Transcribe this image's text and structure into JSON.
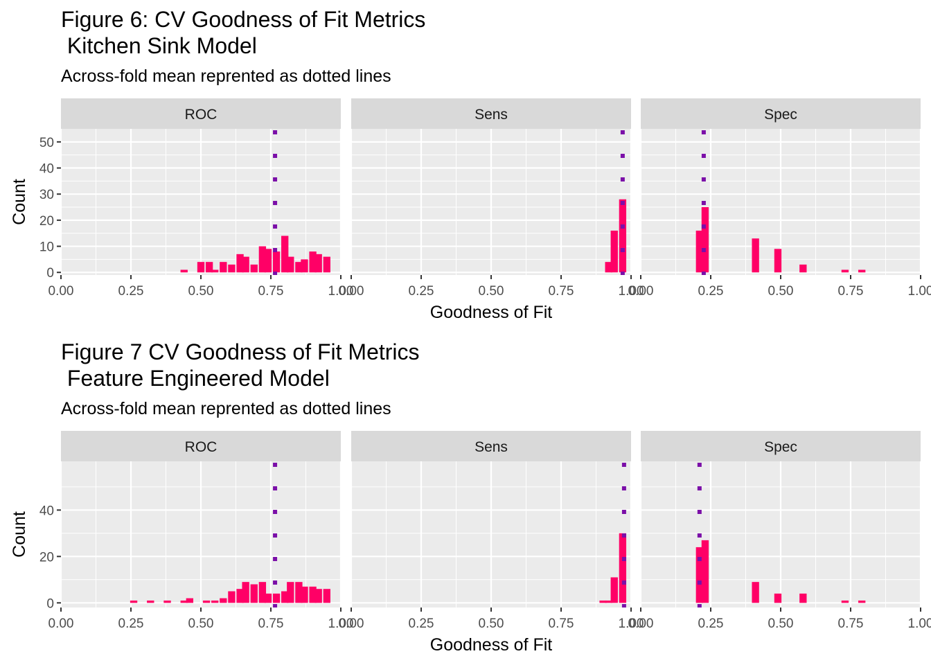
{
  "colors": {
    "bar": "#FF0066",
    "mean_line": "#7B0FA8",
    "panel_bg": "#EBEBEB",
    "strip_bg": "#D9D9D9",
    "grid": "#FFFFFF",
    "text": "#000000",
    "tick_text": "#4D4D4D"
  },
  "chart_data": [
    {
      "type": "bar",
      "title_line1": "Figure 6: CV Goodness of Fit Metrics",
      "title_line2": " Kitchen Sink Model",
      "subtitle": "Across-fold mean reprented as dotted lines",
      "xlabel": "Goodness of Fit",
      "ylabel": "Count",
      "xlim": [
        0,
        1
      ],
      "ylim": [
        -1,
        55
      ],
      "xticks": [
        "0.00",
        "0.25",
        "0.50",
        "0.75",
        "1.00"
      ],
      "yticks": [
        0,
        10,
        20,
        30,
        40,
        50
      ],
      "bin_width": 0.0256,
      "panels": [
        {
          "strip": "ROC",
          "mean": 0.765,
          "bins": [
            [
              0.44,
              1
            ],
            [
              0.5,
              4
            ],
            [
              0.53,
              4
            ],
            [
              0.55,
              1
            ],
            [
              0.58,
              4
            ],
            [
              0.61,
              3
            ],
            [
              0.64,
              7
            ],
            [
              0.66,
              6
            ],
            [
              0.69,
              3
            ],
            [
              0.72,
              10
            ],
            [
              0.74,
              9
            ],
            [
              0.77,
              8
            ],
            [
              0.8,
              14
            ],
            [
              0.82,
              6
            ],
            [
              0.85,
              4
            ],
            [
              0.87,
              5
            ],
            [
              0.9,
              8
            ],
            [
              0.92,
              7
            ],
            [
              0.95,
              6
            ]
          ]
        },
        {
          "strip": "Sens",
          "mean": 0.97,
          "bins": [
            [
              0.92,
              4
            ],
            [
              0.94,
              16
            ],
            [
              0.97,
              28
            ]
          ]
        },
        {
          "strip": "Spec",
          "mean": 0.225,
          "bins": [
            [
              0.21,
              16
            ],
            [
              0.23,
              25
            ],
            [
              0.41,
              13
            ],
            [
              0.49,
              9
            ],
            [
              0.58,
              3
            ],
            [
              0.73,
              1
            ],
            [
              0.79,
              1
            ]
          ]
        }
      ]
    },
    {
      "type": "bar",
      "title_line1": "Figure 7 CV Goodness of Fit Metrics",
      "title_line2": " Feature Engineered Model",
      "subtitle": "Across-fold mean reprented as dotted lines",
      "xlabel": "Goodness of Fit",
      "ylabel": "Count",
      "xlim": [
        0,
        1
      ],
      "ylim": [
        -2,
        61
      ],
      "xticks": [
        "0.00",
        "0.25",
        "0.50",
        "0.75",
        "1.00"
      ],
      "yticks": [
        0,
        20,
        40
      ],
      "bin_width": 0.0256,
      "panels": [
        {
          "strip": "ROC",
          "mean": 0.765,
          "bins": [
            [
              0.26,
              1
            ],
            [
              0.32,
              1
            ],
            [
              0.38,
              1
            ],
            [
              0.44,
              1
            ],
            [
              0.46,
              2
            ],
            [
              0.52,
              1
            ],
            [
              0.55,
              1
            ],
            [
              0.58,
              2
            ],
            [
              0.61,
              5
            ],
            [
              0.64,
              6
            ],
            [
              0.66,
              9
            ],
            [
              0.69,
              8
            ],
            [
              0.72,
              9
            ],
            [
              0.74,
              4
            ],
            [
              0.77,
              4
            ],
            [
              0.8,
              5
            ],
            [
              0.82,
              9
            ],
            [
              0.85,
              9
            ],
            [
              0.87,
              7
            ],
            [
              0.9,
              7
            ],
            [
              0.92,
              6
            ],
            [
              0.95,
              6
            ]
          ]
        },
        {
          "strip": "Sens",
          "mean": 0.975,
          "bins": [
            [
              0.9,
              1
            ],
            [
              0.92,
              1
            ],
            [
              0.94,
              11
            ],
            [
              0.97,
              30
            ]
          ]
        },
        {
          "strip": "Spec",
          "mean": 0.21,
          "bins": [
            [
              0.21,
              24
            ],
            [
              0.23,
              27
            ],
            [
              0.41,
              9
            ],
            [
              0.49,
              4
            ],
            [
              0.58,
              4
            ],
            [
              0.73,
              1
            ],
            [
              0.79,
              1
            ]
          ]
        }
      ]
    }
  ]
}
